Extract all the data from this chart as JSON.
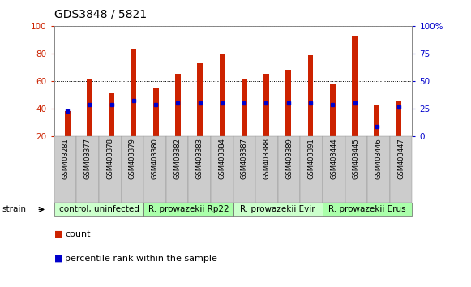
{
  "title": "GDS3848 / 5821",
  "samples": [
    "GSM403281",
    "GSM403377",
    "GSM403378",
    "GSM403379",
    "GSM403380",
    "GSM403382",
    "GSM403383",
    "GSM403384",
    "GSM403387",
    "GSM403388",
    "GSM403389",
    "GSM403391",
    "GSM403444",
    "GSM403445",
    "GSM403446",
    "GSM403447"
  ],
  "red_bar_heights": [
    38,
    61,
    51,
    83,
    55,
    65,
    73,
    80,
    62,
    65,
    68,
    79,
    58,
    93,
    43,
    46
  ],
  "blue_dot_values": [
    38,
    43,
    43,
    46,
    43,
    44,
    44,
    44,
    44,
    44,
    44,
    44,
    43,
    44,
    27,
    41
  ],
  "groups": [
    {
      "label": "control, uninfected",
      "start": 0,
      "end": 4,
      "color": "#ccffcc"
    },
    {
      "label": "R. prowazekii Rp22",
      "start": 4,
      "end": 8,
      "color": "#aaffaa"
    },
    {
      "label": "R. prowazekii Evir",
      "start": 8,
      "end": 12,
      "color": "#ccffcc"
    },
    {
      "label": "R. prowazekii Erus",
      "start": 12,
      "end": 16,
      "color": "#aaffaa"
    }
  ],
  "ylim_left": [
    20,
    100
  ],
  "ylim_right": [
    0,
    100
  ],
  "yticks_left": [
    20,
    40,
    60,
    80,
    100
  ],
  "yticks_right": [
    0,
    25,
    50,
    75,
    100
  ],
  "ytick_labels_right": [
    "0",
    "25",
    "50",
    "75",
    "100%"
  ],
  "left_tick_color": "#cc2200",
  "right_tick_color": "#0000cc",
  "bar_color": "#cc2200",
  "dot_color": "#0000cc",
  "bg_color": "#ffffff",
  "tick_label_bg": "#cccccc",
  "group_label_fontsize": 7.5,
  "sample_label_fontsize": 6,
  "legend_fontsize": 8,
  "title_fontsize": 10
}
